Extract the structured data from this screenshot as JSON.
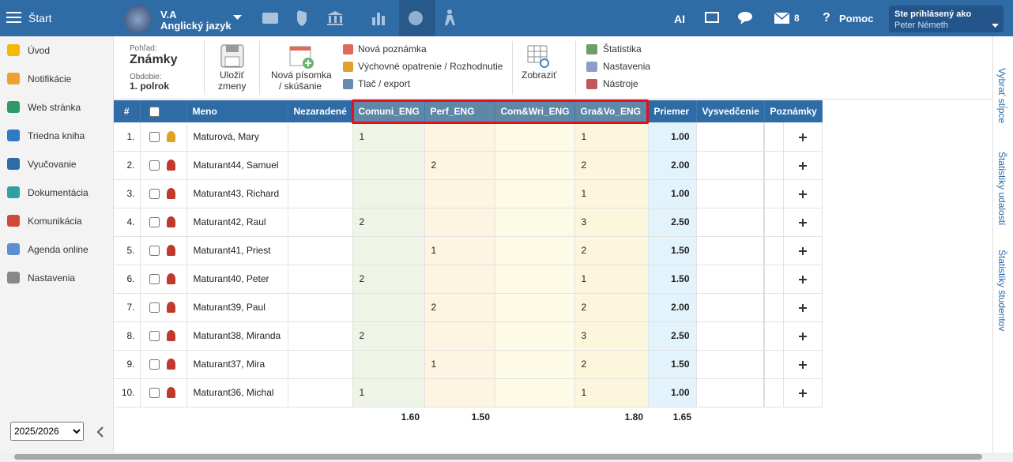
{
  "topbar": {
    "start": "Štart",
    "class": "V.A",
    "subject": "Anglický jazyk",
    "ai": "AI",
    "message_count": "8",
    "help": "Pomoc",
    "login_label": "Ste prihlásený ako",
    "user": "Peter Németh"
  },
  "sidebar": {
    "items": [
      "Úvod",
      "Notifikácie",
      "Web stránka",
      "Triedna kniha",
      "Vyučovanie",
      "Dokumentácia",
      "Komunikácia",
      "Agenda online",
      "Nastavenia"
    ],
    "year": "2025/2026"
  },
  "toolbar": {
    "view_label": "Pohľad:",
    "view": "Známky",
    "period_label": "Obdobie:",
    "period": "1. polrok",
    "save": [
      "Uložiť",
      "zmeny"
    ],
    "new_test": [
      "Nová písomka",
      "/ skúšanie"
    ],
    "actions": [
      "Nová poznámka",
      "Výchovné opatrenie / Rozhodnutie",
      "Tlač / export"
    ],
    "display": "Zobraziť",
    "tools": [
      "Štatistika",
      "Nastavenia",
      "Nástroje"
    ]
  },
  "table": {
    "headers": [
      "#",
      "Meno",
      "Nezaradené",
      "Comuni_ENG",
      "Perf_ENG",
      "Com&Wri_ENG",
      "Gra&Vo_ENG",
      "Priemer",
      "Vysvedčenie",
      "Poznámky"
    ],
    "rows": [
      {
        "number": "1.",
        "name": "Maturová, Mary",
        "grades": [
          "1",
          null,
          null,
          "1"
        ],
        "average": "1.00"
      },
      {
        "number": "2.",
        "name": "Maturant44, Samuel",
        "grades": [
          null,
          "2",
          null,
          "2"
        ],
        "average": "2.00"
      },
      {
        "number": "3.",
        "name": "Maturant43, Richard",
        "grades": [
          null,
          null,
          null,
          "1"
        ],
        "average": "1.00"
      },
      {
        "number": "4.",
        "name": "Maturant42, Raul",
        "grades": [
          "2",
          null,
          null,
          "3"
        ],
        "average": "2.50"
      },
      {
        "number": "5.",
        "name": "Maturant41, Priest",
        "grades": [
          null,
          "1",
          null,
          "2"
        ],
        "average": "1.50"
      },
      {
        "number": "6.",
        "name": "Maturant40, Peter",
        "grades": [
          "2",
          null,
          null,
          "1"
        ],
        "average": "1.50"
      },
      {
        "number": "7.",
        "name": "Maturant39, Paul",
        "grades": [
          null,
          "2",
          null,
          "2"
        ],
        "average": "2.00"
      },
      {
        "number": "8.",
        "name": "Maturant38, Miranda",
        "grades": [
          "2",
          null,
          null,
          "3"
        ],
        "average": "2.50"
      },
      {
        "number": "9.",
        "name": "Maturant37, Mira",
        "grades": [
          null,
          "1",
          null,
          "2"
        ],
        "average": "1.50"
      },
      {
        "number": "10.",
        "name": "Maturant36, Michal",
        "grades": [
          "1",
          null,
          null,
          "1"
        ],
        "average": "1.00"
      }
    ],
    "footer": [
      "1.60",
      "1.50",
      null,
      "1.80",
      "1.65"
    ]
  },
  "right_panel": [
    "Vybrať stĺpce",
    "Štatistiky udalostí",
    "Štatistiky študentov"
  ]
}
